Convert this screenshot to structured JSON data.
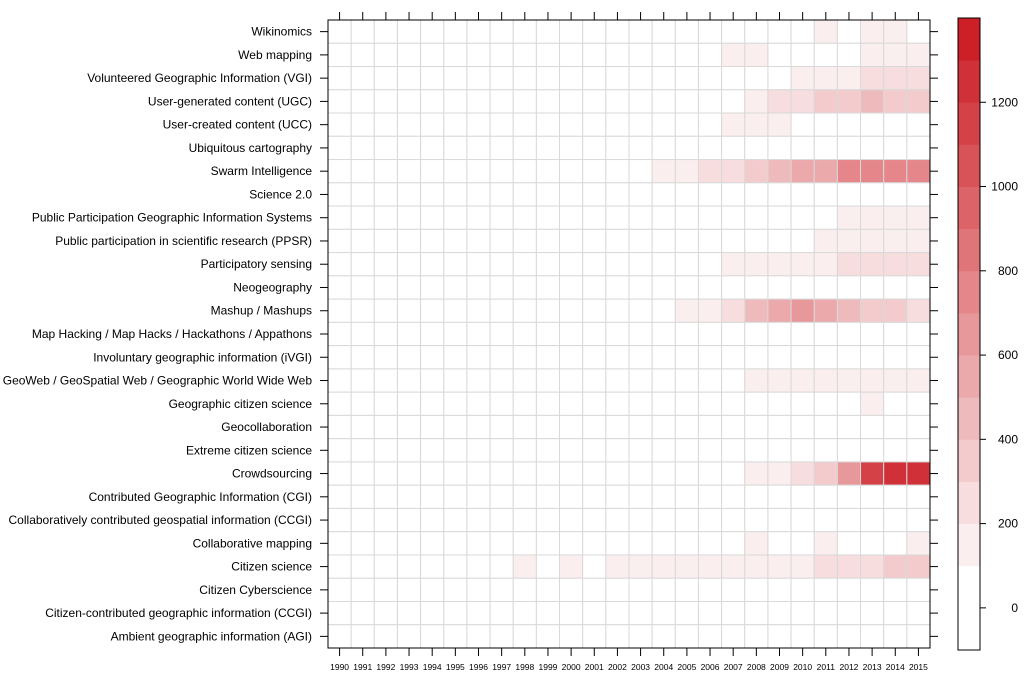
{
  "chart_data": {
    "type": "heatmap",
    "title": "",
    "xlabel": "",
    "ylabel": "",
    "years": [
      "1990",
      "1991",
      "1992",
      "1993",
      "1994",
      "1995",
      "1996",
      "1997",
      "1998",
      "1999",
      "2000",
      "2001",
      "2002",
      "2003",
      "2004",
      "2005",
      "2006",
      "2007",
      "2008",
      "2009",
      "2010",
      "2011",
      "2012",
      "2013",
      "2014",
      "2015"
    ],
    "terms": [
      "Wikinomics",
      "Web mapping",
      "Volunteered Geographic Information (VGI)",
      "User-generated content (UGC)",
      "User-created content (UCC) ",
      "Ubiquitous cartography",
      "Swarm Intelligence",
      "Science 2.0",
      "Public Participation Geographic Information Systems",
      "Public participation in scientific research (PPSR)",
      "Participatory sensing",
      "Neogeography",
      "Mashup / Mashups",
      "Map Hacking / Map Hacks / Hackathons / Appathons",
      "Involuntary geographic information (iVGI)",
      "GeoWeb / GeoSpatial Web / Geographic World Wide Web",
      "Geographic citizen science",
      "Geocollaboration",
      "Extreme citizen science",
      "Crowdsourcing",
      "Contributed Geographic Information (CGI)",
      "Collaboratively contributed geospatial information (CCGI)",
      "Collaborative mapping",
      "Citizen science",
      "Citizen Cyberscience",
      "Citizen-contributed geographic information (CCGI)",
      "Ambient geographic information (AGI)"
    ],
    "values": [
      [
        0,
        0,
        0,
        0,
        0,
        0,
        0,
        0,
        0,
        0,
        0,
        0,
        0,
        0,
        0,
        0,
        0,
        0,
        0,
        0,
        0,
        100,
        0,
        100,
        100,
        0
      ],
      [
        0,
        0,
        0,
        0,
        0,
        0,
        0,
        0,
        0,
        0,
        0,
        0,
        0,
        0,
        0,
        0,
        0,
        100,
        100,
        0,
        50,
        50,
        50,
        100,
        100,
        100
      ],
      [
        0,
        0,
        0,
        0,
        0,
        0,
        0,
        0,
        0,
        0,
        0,
        0,
        0,
        0,
        0,
        0,
        0,
        0,
        50,
        0,
        100,
        100,
        100,
        200,
        200,
        200
      ],
      [
        0,
        0,
        0,
        0,
        0,
        0,
        0,
        0,
        0,
        0,
        0,
        50,
        50,
        50,
        0,
        50,
        50,
        50,
        150,
        250,
        250,
        300,
        350,
        400,
        350,
        300
      ],
      [
        0,
        0,
        0,
        0,
        0,
        0,
        0,
        0,
        0,
        0,
        0,
        0,
        0,
        0,
        0,
        0,
        0,
        100,
        100,
        100,
        50,
        50,
        50,
        50,
        50,
        50
      ],
      [
        0,
        0,
        0,
        0,
        0,
        0,
        0,
        0,
        0,
        0,
        0,
        0,
        0,
        0,
        0,
        0,
        0,
        50,
        50,
        50,
        0,
        0,
        0,
        0,
        0,
        0
      ],
      [
        50,
        0,
        50,
        50,
        0,
        50,
        50,
        50,
        0,
        50,
        0,
        50,
        50,
        50,
        100,
        150,
        200,
        200,
        350,
        400,
        500,
        550,
        700,
        700,
        700,
        700
      ],
      [
        0,
        0,
        0,
        0,
        0,
        0,
        0,
        0,
        0,
        0,
        0,
        0,
        0,
        0,
        0,
        0,
        0,
        0,
        50,
        0,
        50,
        50,
        50,
        50,
        50,
        50
      ],
      [
        0,
        0,
        0,
        0,
        0,
        0,
        0,
        0,
        0,
        0,
        0,
        0,
        0,
        50,
        0,
        0,
        0,
        50,
        50,
        50,
        50,
        50,
        100,
        100,
        100,
        100
      ],
      [
        0,
        0,
        0,
        0,
        0,
        0,
        0,
        0,
        0,
        0,
        0,
        0,
        0,
        0,
        0,
        0,
        0,
        0,
        0,
        0,
        0,
        100,
        100,
        100,
        100,
        100
      ],
      [
        0,
        0,
        0,
        0,
        0,
        0,
        0,
        0,
        0,
        0,
        0,
        0,
        0,
        0,
        0,
        0,
        0,
        100,
        100,
        100,
        100,
        100,
        200,
        200,
        200,
        200
      ],
      [
        0,
        0,
        0,
        0,
        0,
        0,
        0,
        0,
        0,
        0,
        0,
        0,
        0,
        0,
        0,
        0,
        0,
        0,
        50,
        50,
        50,
        50,
        50,
        50,
        50,
        50
      ],
      [
        0,
        0,
        0,
        0,
        0,
        0,
        0,
        0,
        0,
        0,
        0,
        0,
        0,
        0,
        0,
        100,
        100,
        250,
        450,
        550,
        650,
        550,
        400,
        350,
        300,
        250
      ],
      [
        0,
        0,
        0,
        0,
        0,
        0,
        0,
        0,
        0,
        0,
        0,
        0,
        0,
        0,
        0,
        0,
        0,
        0,
        0,
        0,
        0,
        0,
        50,
        50,
        50,
        50
      ],
      [
        0,
        0,
        0,
        0,
        0,
        0,
        0,
        0,
        0,
        0,
        0,
        0,
        0,
        0,
        0,
        0,
        0,
        0,
        0,
        0,
        0,
        0,
        0,
        0,
        0,
        0
      ],
      [
        0,
        0,
        0,
        0,
        0,
        0,
        0,
        0,
        0,
        0,
        0,
        0,
        0,
        0,
        0,
        0,
        0,
        0,
        100,
        100,
        100,
        100,
        100,
        100,
        100,
        100
      ],
      [
        0,
        0,
        0,
        0,
        0,
        0,
        0,
        0,
        0,
        0,
        0,
        0,
        0,
        0,
        0,
        0,
        0,
        0,
        0,
        0,
        0,
        0,
        0,
        100,
        0,
        0
      ],
      [
        0,
        0,
        0,
        0,
        0,
        0,
        0,
        0,
        0,
        0,
        0,
        0,
        0,
        0,
        0,
        0,
        0,
        0,
        0,
        0,
        0,
        0,
        0,
        0,
        0,
        0
      ],
      [
        0,
        0,
        0,
        0,
        0,
        0,
        0,
        0,
        0,
        0,
        0,
        0,
        0,
        0,
        0,
        0,
        0,
        0,
        0,
        0,
        0,
        0,
        0,
        0,
        0,
        0
      ],
      [
        0,
        0,
        0,
        0,
        0,
        0,
        0,
        0,
        0,
        0,
        0,
        0,
        0,
        0,
        0,
        0,
        50,
        0,
        100,
        100,
        200,
        350,
        650,
        1100,
        1250,
        1200
      ],
      [
        0,
        0,
        0,
        0,
        0,
        0,
        0,
        0,
        0,
        0,
        0,
        0,
        0,
        0,
        0,
        0,
        0,
        0,
        0,
        0,
        0,
        0,
        0,
        0,
        0,
        0
      ],
      [
        0,
        0,
        0,
        0,
        0,
        0,
        0,
        0,
        0,
        0,
        0,
        0,
        0,
        0,
        0,
        0,
        0,
        0,
        0,
        0,
        0,
        0,
        0,
        0,
        0,
        0
      ],
      [
        0,
        0,
        0,
        0,
        0,
        0,
        0,
        0,
        0,
        0,
        0,
        0,
        0,
        0,
        0,
        0,
        0,
        0,
        100,
        0,
        0,
        100,
        0,
        50,
        0,
        100
      ],
      [
        0,
        0,
        0,
        0,
        0,
        0,
        0,
        0,
        100,
        0,
        100,
        0,
        100,
        100,
        100,
        100,
        100,
        100,
        150,
        150,
        150,
        200,
        200,
        250,
        300,
        300
      ],
      [
        0,
        0,
        0,
        0,
        0,
        0,
        0,
        0,
        0,
        0,
        0,
        0,
        0,
        0,
        0,
        0,
        0,
        0,
        0,
        0,
        0,
        0,
        0,
        0,
        0,
        0
      ],
      [
        0,
        0,
        0,
        0,
        0,
        0,
        0,
        0,
        0,
        0,
        0,
        0,
        0,
        0,
        0,
        0,
        0,
        0,
        0,
        0,
        0,
        0,
        0,
        0,
        0,
        0
      ],
      [
        0,
        0,
        0,
        0,
        0,
        0,
        0,
        0,
        0,
        0,
        0,
        0,
        0,
        0,
        0,
        0,
        0,
        0,
        0,
        0,
        0,
        0,
        0,
        0,
        0,
        0
      ]
    ],
    "colorbar": {
      "min": -100,
      "max": 1400,
      "step": 100,
      "ticks": [
        0,
        200,
        400,
        600,
        800,
        1000,
        1200
      ],
      "tick_labels": [
        "0",
        "200",
        "400",
        "600",
        "800",
        "1000",
        "1200"
      ],
      "color_low": "#ffffff",
      "color_high": "#cc1f26"
    },
    "grid": true,
    "legend": "colorbar right"
  }
}
